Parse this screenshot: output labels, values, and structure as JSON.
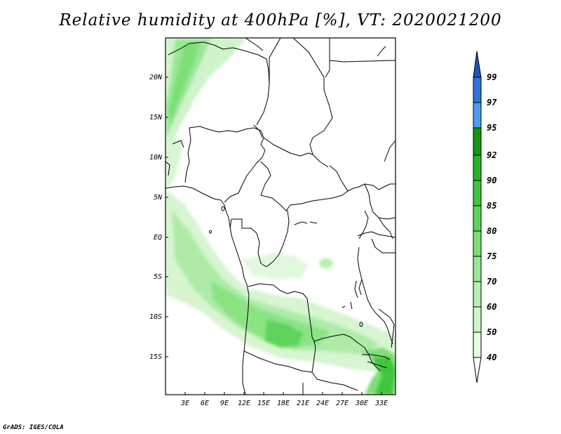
{
  "title": "Relative humidity at 400hPa [%], VT: 2020021200",
  "credit": "GrADS: IGES/COLA",
  "map": {
    "lat_labels": [
      "20N",
      "15N",
      "10N",
      "5N",
      "EQ",
      "5S",
      "10S",
      "15S"
    ],
    "lon_labels": [
      "3E",
      "6E",
      "9E",
      "12E",
      "15E",
      "18E",
      "21E",
      "24E",
      "27E",
      "30E",
      "33E"
    ],
    "border_color": "#000000"
  },
  "colorbar": {
    "levels": [
      "40",
      "50",
      "60",
      "70",
      "75",
      "80",
      "85",
      "90",
      "92",
      "95",
      "97",
      "99"
    ],
    "colors": [
      "#ffffff",
      "#e8fbe5",
      "#d0f6cb",
      "#b6f0b0",
      "#9ae895",
      "#7edf78",
      "#5fd45b",
      "#3fc63c",
      "#26b323",
      "#12970f",
      "#4d9cf0",
      "#2f74d8",
      "#1d55b8"
    ]
  },
  "chart_data": {
    "type": "heatmap",
    "title": "Relative humidity at 400hPa [%], VT: 2020021200",
    "xlabel": "",
    "ylabel": "",
    "x_ticks": [
      "3E",
      "6E",
      "9E",
      "12E",
      "15E",
      "18E",
      "21E",
      "24E",
      "27E",
      "30E",
      "33E"
    ],
    "y_ticks": [
      "20N",
      "15N",
      "10N",
      "5N",
      "EQ",
      "5S",
      "10S",
      "15S"
    ],
    "colorbar_levels": [
      40,
      50,
      60,
      70,
      75,
      80,
      85,
      90,
      92,
      95,
      97,
      99
    ],
    "grid": false
  }
}
